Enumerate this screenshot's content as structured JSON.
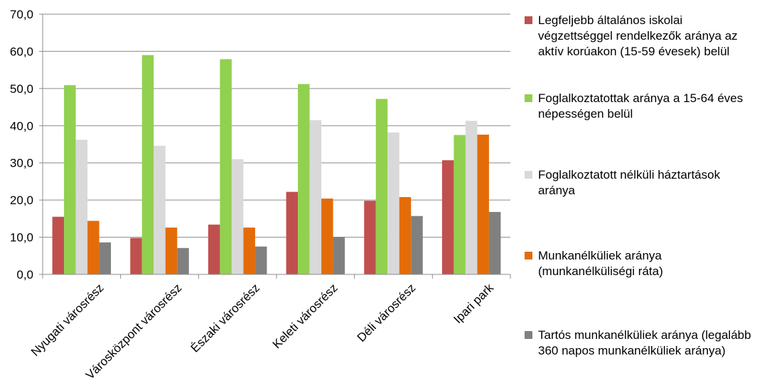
{
  "chart_data": {
    "type": "bar",
    "categories": [
      "Nyugati városrész",
      "Városközpont városrész",
      "Északi városrész",
      "Keleti városrész",
      "Déli városrész",
      "Ipari park"
    ],
    "series": [
      {
        "name": "Legfeljebb általános iskolai végzettséggel rendelkezők aránya az aktív korúakon (15-59 évesek) belül",
        "color": "#c0504d",
        "values": [
          15.5,
          9.8,
          13.4,
          22.2,
          19.8,
          30.7
        ]
      },
      {
        "name": "Foglalkoztatottak aránya a 15-64 éves népességen belül",
        "color": "#92d050",
        "values": [
          50.9,
          59.0,
          57.9,
          51.2,
          47.2,
          37.5
        ]
      },
      {
        "name": "Foglalkoztatott nélküli háztartások aránya",
        "color": "#d9d9d9",
        "values": [
          36.2,
          34.6,
          31.0,
          41.5,
          38.2,
          41.3
        ]
      },
      {
        "name": "Munkanélküliek aránya (munkanélküliségi ráta)",
        "color": "#e36c09",
        "values": [
          14.4,
          12.6,
          12.6,
          20.4,
          20.8,
          37.6
        ]
      },
      {
        "name": "Tartós munkanélküliek aránya (legalább 360 napos munkanélküliek aránya)",
        "color": "#808080",
        "values": [
          8.6,
          7.1,
          7.5,
          10.1,
          15.7,
          16.8
        ]
      }
    ],
    "ylim": [
      0,
      70
    ],
    "yticks": [
      "0,0",
      "10,0",
      "20,0",
      "30,0",
      "40,0",
      "50,0",
      "60,0",
      "70,0"
    ],
    "grid": true,
    "legend_position": "right"
  }
}
